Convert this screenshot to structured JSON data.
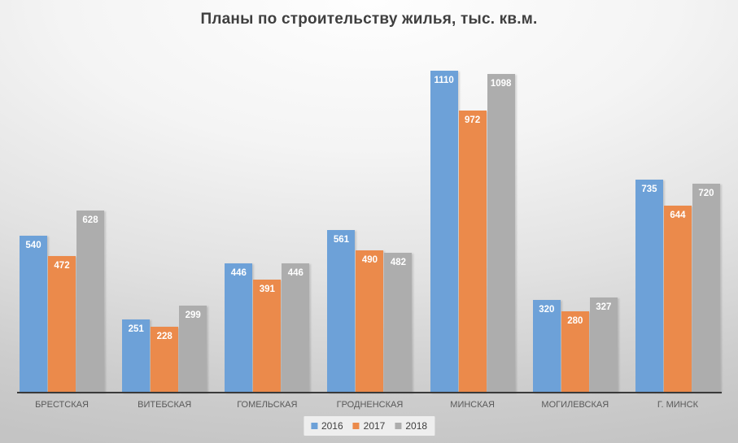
{
  "title": "Планы по строительству жилья, тыс. кв.м.",
  "chart_data": {
    "type": "bar",
    "title": "Планы по строительству жилья, тыс. кв.м.",
    "categories": [
      "БРЕСТСКАЯ",
      "ВИТЕБСКАЯ",
      "ГОМЕЛЬСКАЯ",
      "ГРОДНЕНСКАЯ",
      "МИНСКАЯ",
      "МОГИЛЕВСКАЯ",
      "Г. МИНСК"
    ],
    "series": [
      {
        "name": "2016",
        "color": "#6DA1D8",
        "values": [
          540,
          251,
          446,
          561,
          1110,
          320,
          735
        ]
      },
      {
        "name": "2017",
        "color": "#EB8A4B",
        "values": [
          472,
          228,
          391,
          490,
          972,
          280,
          644
        ]
      },
      {
        "name": "2018",
        "color": "#ADADAD",
        "values": [
          628,
          299,
          446,
          482,
          1098,
          327,
          720
        ]
      }
    ],
    "ylim": [
      0,
      1233
    ],
    "grid": false,
    "y_axis_visible": false,
    "legend_position": "bottom",
    "data_labels": "inside-end",
    "colors": {
      "axis_line": "#3A3A3A",
      "data_label_text": "#FFFFFF",
      "category_text": "#595959",
      "title_text": "#3F3F3F"
    }
  }
}
